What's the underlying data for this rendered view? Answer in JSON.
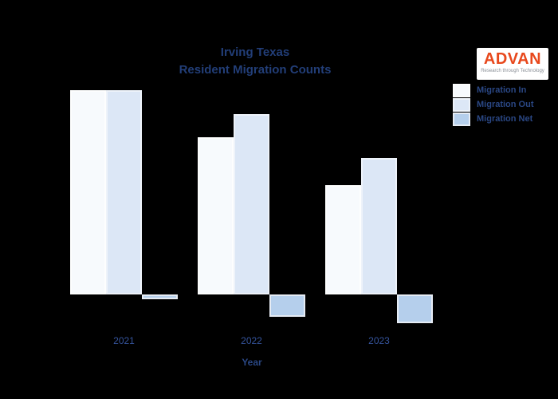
{
  "page": {
    "background": "#000000"
  },
  "header": {
    "title_line1": "Irving Texas",
    "title_line2": "Resident Migration Counts"
  },
  "logo": {
    "brand": "ADVAN",
    "tagline": "Research through Technology",
    "brand_color": "#e8481c",
    "background": "#ffffff"
  },
  "legend": {
    "position": "upper right",
    "items": [
      {
        "label": "Migration In",
        "color": "#f7fafd",
        "edge_color": "#fdfefe"
      },
      {
        "label": "Migration Out",
        "color": "#dce7f6",
        "edge_color": "#eef3fa"
      },
      {
        "label": "Migration Net",
        "color": "#b5cfec",
        "edge_color": "#e6ecf4"
      }
    ]
  },
  "chart_data": {
    "type": "bar",
    "title": "Irving Texas Resident Migration Counts",
    "xlabel": "Year",
    "ylabel": "",
    "categories": [
      "2021",
      "2022",
      "2023"
    ],
    "series": [
      {
        "name": "Migration In",
        "color": "#f7fafd",
        "edge_color": "#fdfefe",
        "values": [
          256,
          197,
          137
        ]
      },
      {
        "name": "Migration Out",
        "color": "#dce7f6",
        "edge_color": "#eef3fa",
        "values": [
          256,
          226,
          171
        ]
      },
      {
        "name": "Migration Net",
        "color": "#b5cfec",
        "edge_color": "#e6ecf4",
        "values": [
          -6,
          -28,
          -36
        ]
      }
    ],
    "value_units": "relative (no y-axis scale shown in chart)",
    "baseline": 0,
    "grid": false,
    "legend_position": "upper right",
    "notes": "Net migration bars extend below the zero baseline (negative) in 2022 and 2023; 2021 in/out bars are equal height with near-zero net."
  }
}
